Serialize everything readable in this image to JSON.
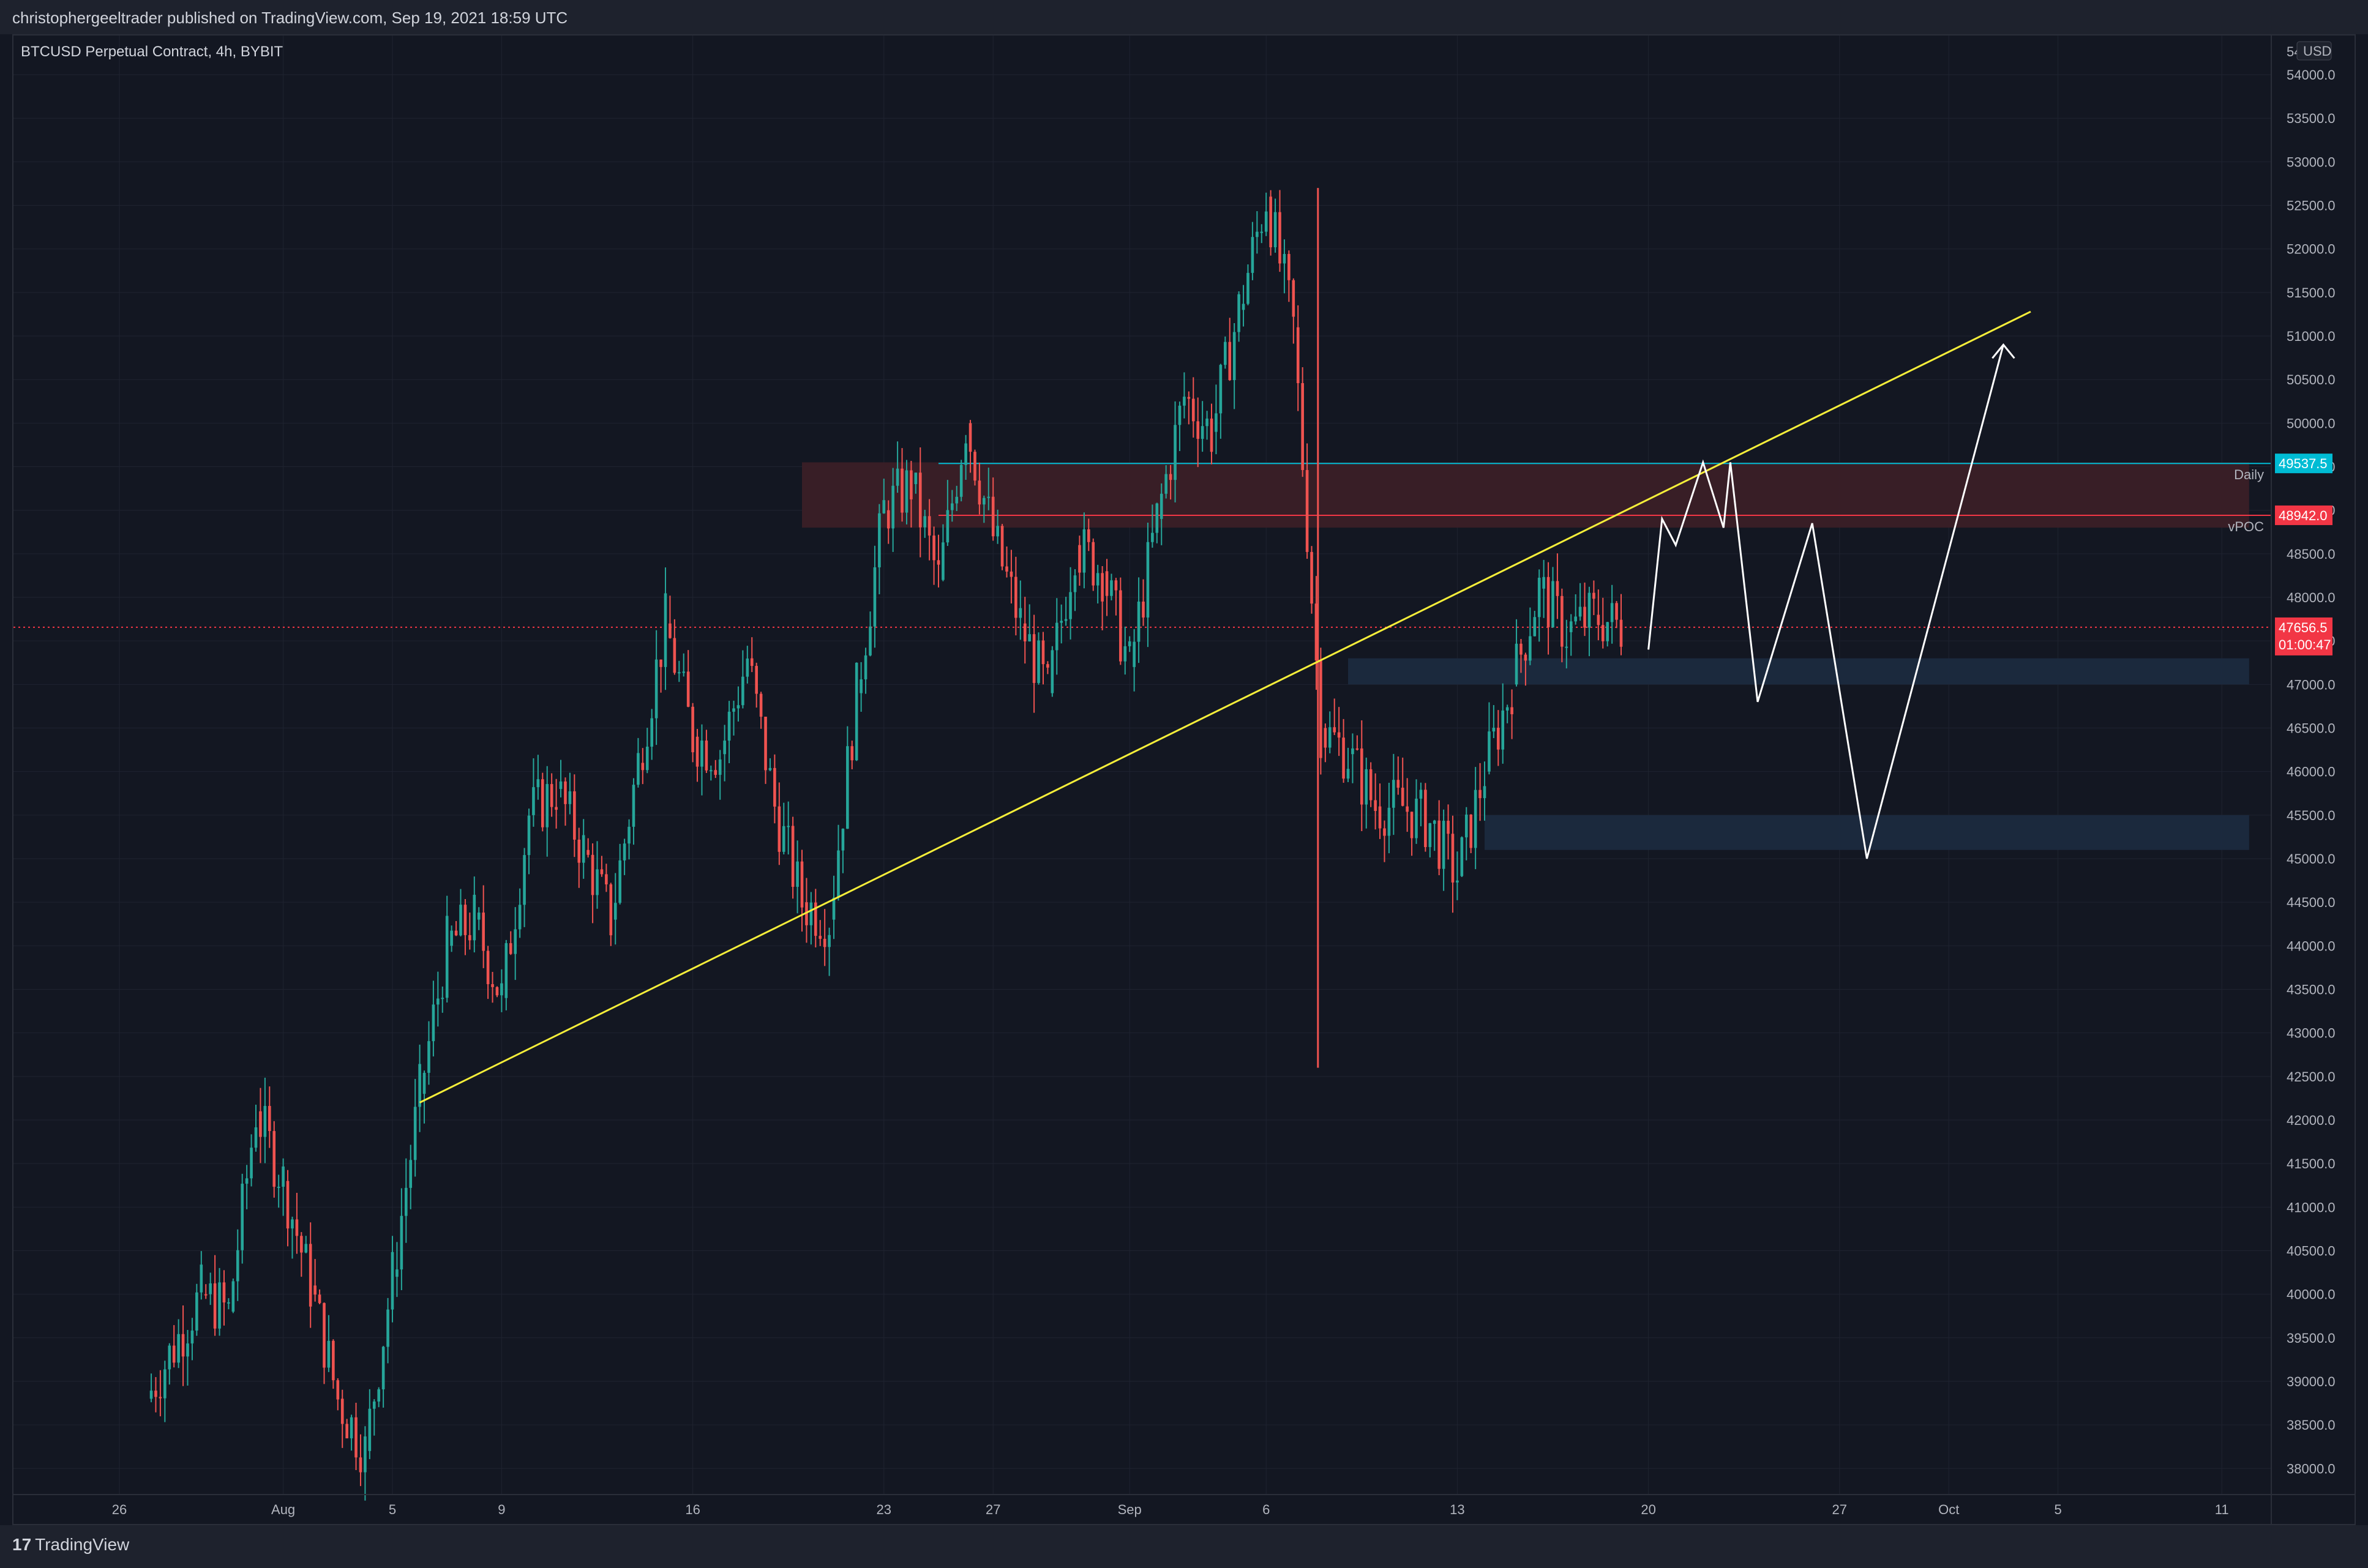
{
  "header": {
    "published": "christophergeeltrader published on TradingView.com, Sep 19, 2021 18:59 UTC"
  },
  "symbol": {
    "title": "BTCUSD Perpetual Contract, 4h, BYBIT"
  },
  "footer": {
    "logo_text": "TradingView"
  },
  "colors": {
    "background": "#131722",
    "grid": "#1f2330",
    "up": "#26a69a",
    "down": "#ef5350",
    "trendline": "#f5ee3a",
    "projection": "#ffffff",
    "daily_line": "#00bcd4",
    "vpoc_line": "#f23645",
    "resistance_zone": "#3a1f27",
    "support_zone": "#1b2a3f"
  },
  "chart_data": {
    "type": "candlestick",
    "title": "BTCUSD Perpetual Contract, 4h, BYBIT",
    "ylim": [
      37700,
      54450
    ],
    "y_ticks": [
      38000,
      38500,
      39000,
      39500,
      40000,
      40500,
      41000,
      41500,
      42000,
      42500,
      43000,
      43500,
      44000,
      44500,
      45000,
      45500,
      46000,
      46500,
      47000,
      47500,
      48000,
      48500,
      49000,
      49500,
      50000,
      50500,
      51000,
      51500,
      52000,
      52500,
      53000,
      53500,
      54000
    ],
    "y_tick_labels": [
      "38000.0",
      "38500.0",
      "39000.0",
      "39500.0",
      "40000.0",
      "40500.0",
      "41000.0",
      "41500.0",
      "42000.0",
      "42500.0",
      "43000.0",
      "43500.0",
      "44000.0",
      "44500.0",
      "45000.0",
      "45500.0",
      "46000.0",
      "46500.0",
      "47000.0",
      "47500.0",
      "48000.0",
      "48500.0",
      "49000.0",
      "49500.0",
      "50000.0",
      "50500.0",
      "51000.0",
      "51500.0",
      "52000.0",
      "52500.0",
      "53000.0",
      "53500.0",
      "54000.0"
    ],
    "y_top_partial_label": "54",
    "currency": "USD",
    "x_ticks": [
      {
        "date": "2021-07-26",
        "label": "26"
      },
      {
        "date": "2021-08-01",
        "label": "Aug"
      },
      {
        "date": "2021-08-05",
        "label": "5"
      },
      {
        "date": "2021-08-09",
        "label": "9"
      },
      {
        "date": "2021-08-16",
        "label": "16"
      },
      {
        "date": "2021-08-23",
        "label": "23"
      },
      {
        "date": "2021-08-27",
        "label": "27"
      },
      {
        "date": "2021-09-01",
        "label": "Sep"
      },
      {
        "date": "2021-09-06",
        "label": "6"
      },
      {
        "date": "2021-09-13",
        "label": "13"
      },
      {
        "date": "2021-09-20",
        "label": "20"
      },
      {
        "date": "2021-09-27",
        "label": "27"
      },
      {
        "date": "2021-10-01",
        "label": "Oct"
      },
      {
        "date": "2021-10-05",
        "label": "5"
      },
      {
        "date": "2021-10-11",
        "label": "11"
      }
    ],
    "candles_close": [
      {
        "date": "2021-07-27",
        "close": 38800
      },
      {
        "date": "2021-07-29",
        "close": 40000
      },
      {
        "date": "2021-07-30",
        "close": 39800
      },
      {
        "date": "2021-07-31",
        "close": 42100
      },
      {
        "date": "2021-08-01",
        "close": 41300
      },
      {
        "date": "2021-08-02",
        "close": 40100
      },
      {
        "date": "2021-08-03",
        "close": 38800
      },
      {
        "date": "2021-08-04",
        "close": 38200
      },
      {
        "date": "2021-08-05",
        "close": 40200
      },
      {
        "date": "2021-08-06",
        "close": 42300
      },
      {
        "date": "2021-08-07",
        "close": 44000
      },
      {
        "date": "2021-08-08",
        "close": 44300
      },
      {
        "date": "2021-08-09",
        "close": 43400
      },
      {
        "date": "2021-08-10",
        "close": 45500
      },
      {
        "date": "2021-08-11",
        "close": 45800
      },
      {
        "date": "2021-08-12",
        "close": 45100
      },
      {
        "date": "2021-08-13",
        "close": 44300
      },
      {
        "date": "2021-08-14",
        "close": 46100
      },
      {
        "date": "2021-08-15",
        "close": 47700
      },
      {
        "date": "2021-08-16",
        "close": 46400
      },
      {
        "date": "2021-08-17",
        "close": 46200
      },
      {
        "date": "2021-08-18",
        "close": 47300
      },
      {
        "date": "2021-08-19",
        "close": 45600
      },
      {
        "date": "2021-08-20",
        "close": 44500
      },
      {
        "date": "2021-08-21",
        "close": 44300
      },
      {
        "date": "2021-08-22",
        "close": 46900
      },
      {
        "date": "2021-08-23",
        "close": 49000
      },
      {
        "date": "2021-08-24",
        "close": 49300
      },
      {
        "date": "2021-08-25",
        "close": 48200
      },
      {
        "date": "2021-08-26",
        "close": 50000
      },
      {
        "date": "2021-08-27",
        "close": 48700
      },
      {
        "date": "2021-08-28",
        "close": 47700
      },
      {
        "date": "2021-08-29",
        "close": 46900
      },
      {
        "date": "2021-08-30",
        "close": 48600
      },
      {
        "date": "2021-08-31",
        "close": 48300
      },
      {
        "date": "2021-09-01",
        "close": 47200
      },
      {
        "date": "2021-09-02",
        "close": 48900
      },
      {
        "date": "2021-09-03",
        "close": 50300
      },
      {
        "date": "2021-09-04",
        "close": 49900
      },
      {
        "date": "2021-09-05",
        "close": 51300
      },
      {
        "date": "2021-09-06",
        "close": 52600
      },
      {
        "date": "2021-09-07",
        "close": 51100
      },
      {
        "date": "2021-09-08",
        "close": 46500
      },
      {
        "date": "2021-09-09",
        "close": 46200
      },
      {
        "date": "2021-09-10",
        "close": 45600
      },
      {
        "date": "2021-09-11",
        "close": 45600
      },
      {
        "date": "2021-09-12",
        "close": 45400
      },
      {
        "date": "2021-09-13",
        "close": 44800
      },
      {
        "date": "2021-09-14",
        "close": 46000
      },
      {
        "date": "2021-09-15",
        "close": 47000
      },
      {
        "date": "2021-09-16",
        "close": 48100
      },
      {
        "date": "2021-09-17",
        "close": 47600
      },
      {
        "date": "2021-09-18",
        "close": 47800
      },
      {
        "date": "2021-09-19",
        "close": 47656.5
      }
    ],
    "price_labels": [
      {
        "name": "Daily",
        "value": 49537.5,
        "label": "49537.5",
        "color": "#00bcd4"
      },
      {
        "name": "vPOC",
        "value": 48942.0,
        "label": "48942.0",
        "color": "#f23645"
      },
      {
        "name": "last",
        "value": 47656.5,
        "label": "47656.5",
        "countdown": "01:00:47",
        "color": "#f23645"
      }
    ],
    "zones": [
      {
        "kind": "resistance",
        "from": "2021-08-20",
        "to": "2021-10-12",
        "low": 48800,
        "high": 49550
      },
      {
        "kind": "support",
        "from": "2021-09-09",
        "to": "2021-10-12",
        "low": 47000,
        "high": 47300
      },
      {
        "kind": "support",
        "from": "2021-09-14",
        "to": "2021-10-12",
        "low": 45100,
        "high": 45500
      }
    ],
    "trendline": {
      "start": {
        "date": "2021-08-06",
        "value": 42200
      },
      "end": {
        "date": "2021-10-04",
        "value": 51280
      }
    },
    "projection": [
      {
        "date": "2021-09-20",
        "value": 47400
      },
      {
        "date": "2021-09-20T12:00",
        "value": 48900
      },
      {
        "date": "2021-09-21",
        "value": 48600
      },
      {
        "date": "2021-09-22",
        "value": 49550
      },
      {
        "date": "2021-09-22T18:00",
        "value": 48800
      },
      {
        "date": "2021-09-23",
        "value": 49550
      },
      {
        "date": "2021-09-24",
        "value": 46800
      },
      {
        "date": "2021-09-26",
        "value": 48850
      },
      {
        "date": "2021-09-28",
        "value": 45000
      },
      {
        "date": "2021-10-03",
        "value": 50900
      }
    ]
  }
}
